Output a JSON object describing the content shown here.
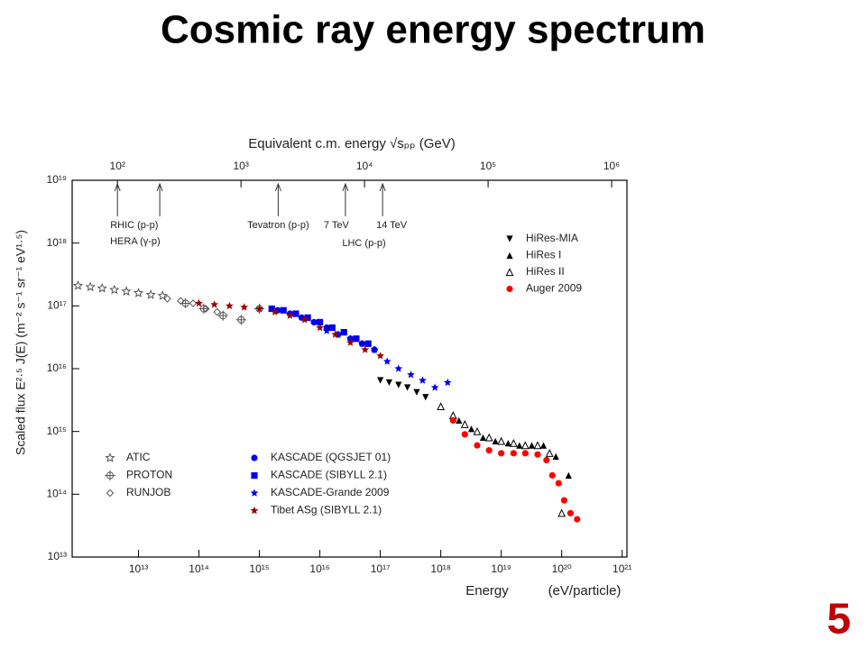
{
  "slide_number": "5",
  "chart_data": {
    "type": "scatter",
    "title": "Cosmic ray energy spectrum",
    "xlabel": "Energy",
    "xlabel_unit": "(eV/particle)",
    "ylabel": "Scaled flux  E²·⁵ J(E)  (m⁻² s⁻¹ sr⁻¹ eV¹·⁵)",
    "x2label": "Equivalent c.m. energy √sₚₚ  (GeV)",
    "xscale": "log",
    "yscale": "log",
    "xlim": [
      800000000000.0,
      1.2e+21
    ],
    "ylim": [
      10000000000000.0,
      1e+19
    ],
    "x2lim": [
      43,
      1330000.0
    ],
    "xticks": [
      {
        "value": 10000000000000.0,
        "label": "10¹³"
      },
      {
        "value": 100000000000000.0,
        "label": "10¹⁴"
      },
      {
        "value": 1000000000000000.0,
        "label": "10¹⁵"
      },
      {
        "value": 1e+16,
        "label": "10¹⁶"
      },
      {
        "value": 1e+17,
        "label": "10¹⁷"
      },
      {
        "value": 1e+18,
        "label": "10¹⁸"
      },
      {
        "value": 1e+19,
        "label": "10¹⁹"
      },
      {
        "value": 1e+20,
        "label": "10²⁰"
      },
      {
        "value": 1e+21,
        "label": "10²¹"
      }
    ],
    "yticks": [
      {
        "value": 10000000000000.0,
        "label": "10¹³"
      },
      {
        "value": 100000000000000.0,
        "label": "10¹⁴"
      },
      {
        "value": 1000000000000000.0,
        "label": "10¹⁵"
      },
      {
        "value": 1e+16,
        "label": "10¹⁶"
      },
      {
        "value": 1e+17,
        "label": "10¹⁷"
      },
      {
        "value": 1e+18,
        "label": "10¹⁸"
      },
      {
        "value": 1e+19,
        "label": "10¹⁹"
      }
    ],
    "x2ticks": [
      {
        "value": 100,
        "label": "10²"
      },
      {
        "value": 1000,
        "label": "10³"
      },
      {
        "value": 10000,
        "label": "10⁴"
      },
      {
        "value": 100000,
        "label": "10⁵"
      },
      {
        "value": 1000000,
        "label": "10⁶"
      }
    ],
    "annotations": [
      {
        "text": "RHIC (p-p)",
        "x2": 100
      },
      {
        "text": "HERA (γ-p)",
        "x2": 220
      },
      {
        "text": "Tevatron (p-p)",
        "x2": 2000
      },
      {
        "text": "7 TeV",
        "x2": 7000
      },
      {
        "text": "14 TeV",
        "x2": 14000
      },
      {
        "text": "LHC (p-p)"
      }
    ],
    "series": [
      {
        "name": "HiRes-MIA",
        "color": "#000000",
        "marker": "triangle-down",
        "legend": "upper right",
        "x": [
          1e+17,
          1.4e+17,
          2e+17,
          2.8e+17,
          4e+17,
          5.6e+17
        ],
        "values": [
          6500000000000000.0,
          6000000000000000.0,
          5500000000000000.0,
          5000000000000000.0,
          4200000000000000.0,
          3500000000000000.0
        ]
      },
      {
        "name": "HiRes I",
        "color": "#000000",
        "marker": "triangle-up",
        "legend": "upper right",
        "x": [
          2e+18,
          3.2e+18,
          5e+18,
          8e+18,
          1.3e+19,
          2e+19,
          3.2e+19,
          5e+19,
          8e+19,
          1.3e+20
        ],
        "values": [
          1500000000000000.0,
          1100000000000000.0,
          800000000000000.0,
          700000000000000.0,
          650000000000000.0,
          600000000000000.0,
          600000000000000.0,
          600000000000000.0,
          400000000000000.0,
          200000000000000.0
        ]
      },
      {
        "name": "HiRes II",
        "color": "#000000",
        "marker": "triangle-open",
        "legend": "upper right",
        "x": [
          1e+18,
          1.6e+18,
          2.5e+18,
          4e+18,
          6.3e+18,
          1e+19,
          1.6e+19,
          2.5e+19,
          4e+19,
          6.3e+19,
          1e+20
        ],
        "values": [
          2500000000000000.0,
          1800000000000000.0,
          1300000000000000.0,
          1000000000000000.0,
          800000000000000.0,
          700000000000000.0,
          650000000000000.0,
          600000000000000.0,
          600000000000000.0,
          450000000000000.0,
          50000000000000.0
        ]
      },
      {
        "name": "Auger 2009",
        "color": "#ff0000",
        "marker": "circle",
        "legend": "upper right",
        "x": [
          1.6e+18,
          2.5e+18,
          4e+18,
          6.3e+18,
          1e+19,
          1.6e+19,
          2.5e+19,
          4e+19,
          5.6e+19,
          7e+19,
          8.9e+19,
          1.1e+20,
          1.4e+20,
          1.8e+20
        ],
        "values": [
          1500000000000000.0,
          900000000000000.0,
          600000000000000.0,
          500000000000000.0,
          450000000000000.0,
          450000000000000.0,
          450000000000000.0,
          430000000000000.0,
          350000000000000.0,
          200000000000000.0,
          150000000000000.0,
          80000000000000.0,
          50000000000000.0,
          40000000000000.0
        ]
      },
      {
        "name": "ATIC",
        "color": "#555555",
        "marker": "star-open",
        "legend": "lower left",
        "x": [
          1000000000000.0,
          1600000000000.0,
          2500000000000.0,
          4000000000000.0,
          6300000000000.0,
          10000000000000.0,
          16000000000000.0,
          25000000000000.0
        ],
        "values": [
          2.1e+17,
          2e+17,
          1.9e+17,
          1.8e+17,
          1.7e+17,
          1.6e+17,
          1.5e+17,
          1.45e+17
        ]
      },
      {
        "name": "PROTON",
        "color": "#555555",
        "marker": "cross-circle",
        "legend": "lower left",
        "x": [
          60000000000000.0,
          120000000000000.0,
          250000000000000.0,
          500000000000000.0,
          1000000000000000.0
        ],
        "values": [
          1.1e+17,
          9e+16,
          7e+16,
          6e+16,
          9e+16
        ]
      },
      {
        "name": "RUNJOB",
        "color": "#555555",
        "marker": "diamond",
        "legend": "lower left",
        "x": [
          30000000000000.0,
          50000000000000.0,
          80000000000000.0,
          130000000000000.0,
          200000000000000.0
        ],
        "values": [
          1.3e+17,
          1.2e+17,
          1.1e+17,
          9e+16,
          8e+16
        ]
      },
      {
        "name": "KASCADE (QGSJET 01)",
        "color": "#0000ee",
        "marker": "circle",
        "legend": "lower center",
        "x": [
          2000000000000000.0,
          3200000000000000.0,
          5000000000000000.0,
          8000000000000000.0,
          1.3e+16,
          2e+16,
          3.2e+16,
          5e+16,
          8e+16
        ],
        "values": [
          8.5e+16,
          7.5e+16,
          6.5e+16,
          5.5e+16,
          4.5e+16,
          3.5e+16,
          3e+16,
          2.5e+16,
          2e+16
        ]
      },
      {
        "name": "KASCADE (SIBYLL 2.1)",
        "color": "#0000ee",
        "marker": "square",
        "legend": "lower center",
        "x": [
          1600000000000000.0,
          2500000000000000.0,
          4000000000000000.0,
          6300000000000000.0,
          1e+16,
          1.6e+16,
          2.5e+16,
          4e+16,
          6.3e+16
        ],
        "values": [
          9e+16,
          8.5e+16,
          7.5e+16,
          6.5e+16,
          5.5e+16,
          4.5e+16,
          3.8e+16,
          3e+16,
          2.5e+16
        ]
      },
      {
        "name": "KASCADE-Grande 2009",
        "color": "#0000ee",
        "marker": "star",
        "legend": "lower center",
        "x": [
          1.3e+16,
          2e+16,
          3.2e+16,
          5e+16,
          8e+16,
          1.3e+17,
          2e+17,
          3.2e+17,
          5e+17,
          8e+17,
          1.3e+18
        ],
        "values": [
          4e+16,
          3.5e+16,
          3e+16,
          2.5e+16,
          2e+16,
          1.3e+16,
          1e+16,
          8000000000000000.0,
          6500000000000000.0,
          5000000000000000.0,
          6000000000000000.0
        ]
      },
      {
        "name": "Tibet ASg (SIBYLL 2.1)",
        "color": "#990000",
        "marker": "star",
        "legend": "lower center",
        "x": [
          100000000000000.0,
          180000000000000.0,
          320000000000000.0,
          560000000000000.0,
          1000000000000000.0,
          1800000000000000.0,
          3200000000000000.0,
          5600000000000000.0,
          1e+16,
          1.8e+16,
          3.2e+16,
          5.6e+16,
          1e+17
        ],
        "values": [
          1.1e+17,
          1.05e+17,
          1e+17,
          9.5e+16,
          9e+16,
          8e+16,
          7e+16,
          6e+16,
          4.5e+16,
          3.5e+16,
          2.6e+16,
          2e+16,
          1.6e+16
        ]
      }
    ]
  }
}
